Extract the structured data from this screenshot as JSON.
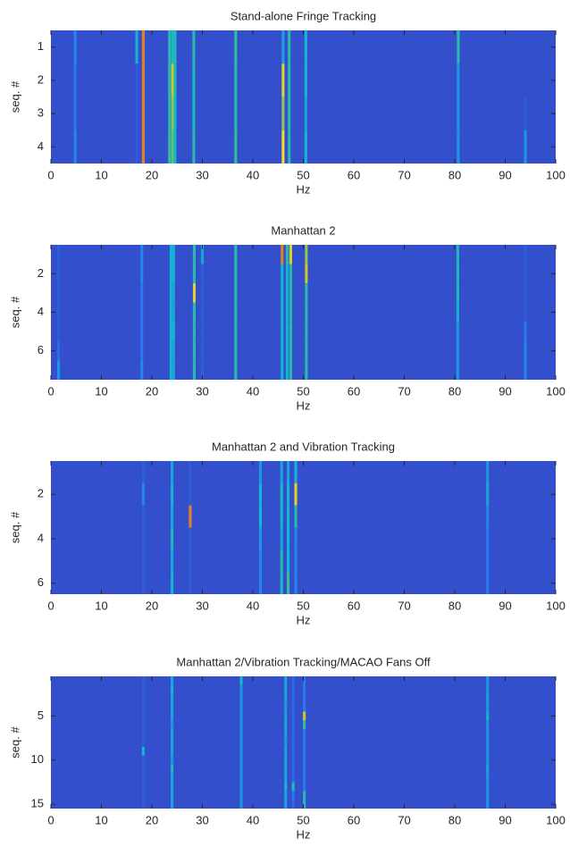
{
  "chart_data": [
    {
      "type": "heatmap",
      "title": "Stand-alone Fringe Tracking",
      "x_label": "Hz",
      "y_label": "seq. #",
      "xlim": [
        0,
        100
      ],
      "xticks": [
        0,
        10,
        20,
        30,
        40,
        50,
        60,
        70,
        80,
        90,
        100
      ],
      "ylim": [
        0.5,
        4.5
      ],
      "yticks": [
        1,
        2,
        3,
        4
      ],
      "zlim": [
        0,
        1
      ],
      "background": 0.15,
      "x": [
        4.8,
        17,
        18.3,
        23.5,
        24.1,
        24.6,
        28.3,
        36.6,
        46,
        47.2,
        50.5,
        80.7,
        94
      ],
      "z": [
        [
          0.35,
          0.5,
          0.95,
          0.6,
          0.55,
          0.55,
          0.6,
          0.65,
          0.45,
          0.6,
          0.5,
          0.6,
          0.15
        ],
        [
          0.3,
          0.2,
          0.95,
          0.6,
          0.8,
          0.55,
          0.55,
          0.6,
          0.85,
          0.6,
          0.5,
          0.4,
          0.15
        ],
        [
          0.3,
          0.2,
          0.95,
          0.6,
          0.75,
          0.5,
          0.55,
          0.6,
          0.75,
          0.6,
          0.45,
          0.4,
          0.2
        ],
        [
          0.35,
          0.2,
          0.95,
          0.65,
          0.7,
          0.5,
          0.6,
          0.65,
          0.9,
          0.6,
          0.5,
          0.4,
          0.4
        ]
      ]
    },
    {
      "type": "heatmap",
      "title": "Manhattan 2",
      "x_label": "Hz",
      "y_label": "seq. #",
      "xlim": [
        0,
        100
      ],
      "xticks": [
        0,
        10,
        20,
        30,
        40,
        50,
        60,
        70,
        80,
        90,
        100
      ],
      "ylim": [
        0.5,
        7.5
      ],
      "yticks": [
        2,
        4,
        6
      ],
      "zlim": [
        0,
        1
      ],
      "background": 0.15,
      "x": [
        1.5,
        18,
        23.8,
        24.3,
        28.4,
        30,
        36.6,
        45.8,
        46.8,
        47.5,
        50.6,
        80.6,
        94
      ],
      "z": [
        [
          0.2,
          0.35,
          0.5,
          0.5,
          0.6,
          0.45,
          0.6,
          0.95,
          0.6,
          0.85,
          0.75,
          0.55,
          0.2
        ],
        [
          0.2,
          0.35,
          0.5,
          0.5,
          0.6,
          0.2,
          0.6,
          0.5,
          0.5,
          0.6,
          0.8,
          0.55,
          0.2
        ],
        [
          0.2,
          0.3,
          0.5,
          0.45,
          0.85,
          0.2,
          0.6,
          0.5,
          0.5,
          0.6,
          0.6,
          0.55,
          0.2
        ],
        [
          0.2,
          0.3,
          0.5,
          0.45,
          0.6,
          0.2,
          0.6,
          0.5,
          0.5,
          0.6,
          0.6,
          0.5,
          0.2
        ],
        [
          0.2,
          0.3,
          0.5,
          0.5,
          0.6,
          0.2,
          0.6,
          0.5,
          0.5,
          0.6,
          0.6,
          0.4,
          0.3
        ],
        [
          0.25,
          0.3,
          0.5,
          0.45,
          0.6,
          0.2,
          0.6,
          0.5,
          0.5,
          0.6,
          0.6,
          0.4,
          0.35
        ],
        [
          0.4,
          0.35,
          0.5,
          0.45,
          0.6,
          0.2,
          0.6,
          0.5,
          0.5,
          0.6,
          0.6,
          0.4,
          0.35
        ]
      ]
    },
    {
      "type": "heatmap",
      "title": "Manhattan 2 and Vibration Tracking",
      "x_label": "Hz",
      "y_label": "seq. #",
      "xlim": [
        0,
        100
      ],
      "xticks": [
        0,
        10,
        20,
        30,
        40,
        50,
        60,
        70,
        80,
        90,
        100
      ],
      "ylim": [
        0.5,
        6.5
      ],
      "yticks": [
        2,
        4,
        6
      ],
      "zlim": [
        0,
        1
      ],
      "background": 0.15,
      "x": [
        18.3,
        24,
        27.6,
        41.5,
        45.7,
        47,
        48.5,
        86.5
      ],
      "z": [
        [
          0.2,
          0.45,
          0.2,
          0.4,
          0.45,
          0.45,
          0.5,
          0.4
        ],
        [
          0.35,
          0.5,
          0.2,
          0.5,
          0.55,
          0.5,
          0.85,
          0.45
        ],
        [
          0.2,
          0.45,
          0.95,
          0.5,
          0.5,
          0.5,
          0.6,
          0.35
        ],
        [
          0.2,
          0.55,
          0.2,
          0.4,
          0.45,
          0.5,
          0.35,
          0.3
        ],
        [
          0.2,
          0.45,
          0.2,
          0.35,
          0.6,
          0.5,
          0.35,
          0.3
        ],
        [
          0.2,
          0.5,
          0.2,
          0.35,
          0.55,
          0.65,
          0.35,
          0.3
        ]
      ]
    },
    {
      "type": "heatmap",
      "title": "Manhattan 2/Vibration Tracking/MACAO Fans Off",
      "x_label": "Hz",
      "y_label": "seq. #",
      "xlim": [
        0,
        100
      ],
      "xticks": [
        0,
        10,
        20,
        30,
        40,
        50,
        60,
        70,
        80,
        90,
        100
      ],
      "ylim": [
        0.5,
        15.5
      ],
      "yticks": [
        5,
        10,
        15
      ],
      "zlim": [
        0,
        1
      ],
      "background": 0.15,
      "x": [
        18.3,
        24,
        37.7,
        46.5,
        48,
        50.2,
        86.5
      ],
      "z": [
        [
          0.2,
          0.45,
          0.5,
          0.45,
          0.25,
          0.3,
          0.4
        ],
        [
          0.2,
          0.5,
          0.4,
          0.45,
          0.25,
          0.3,
          0.4
        ],
        [
          0.2,
          0.45,
          0.4,
          0.45,
          0.25,
          0.3,
          0.45
        ],
        [
          0.2,
          0.45,
          0.4,
          0.4,
          0.25,
          0.3,
          0.4
        ],
        [
          0.2,
          0.45,
          0.4,
          0.45,
          0.25,
          0.8,
          0.5
        ],
        [
          0.2,
          0.4,
          0.4,
          0.45,
          0.25,
          0.65,
          0.4
        ],
        [
          0.2,
          0.45,
          0.4,
          0.45,
          0.25,
          0.3,
          0.4
        ],
        [
          0.2,
          0.45,
          0.4,
          0.4,
          0.25,
          0.3,
          0.4
        ],
        [
          0.5,
          0.45,
          0.4,
          0.45,
          0.25,
          0.3,
          0.4
        ],
        [
          0.2,
          0.4,
          0.4,
          0.45,
          0.25,
          0.3,
          0.4
        ],
        [
          0.2,
          0.55,
          0.4,
          0.45,
          0.25,
          0.3,
          0.45
        ],
        [
          0.2,
          0.45,
          0.4,
          0.45,
          0.25,
          0.3,
          0.4
        ],
        [
          0.2,
          0.45,
          0.4,
          0.5,
          0.6,
          0.3,
          0.4
        ],
        [
          0.2,
          0.45,
          0.4,
          0.45,
          0.3,
          0.6,
          0.4
        ],
        [
          0.2,
          0.45,
          0.4,
          0.45,
          0.25,
          0.6,
          0.4
        ]
      ]
    }
  ]
}
